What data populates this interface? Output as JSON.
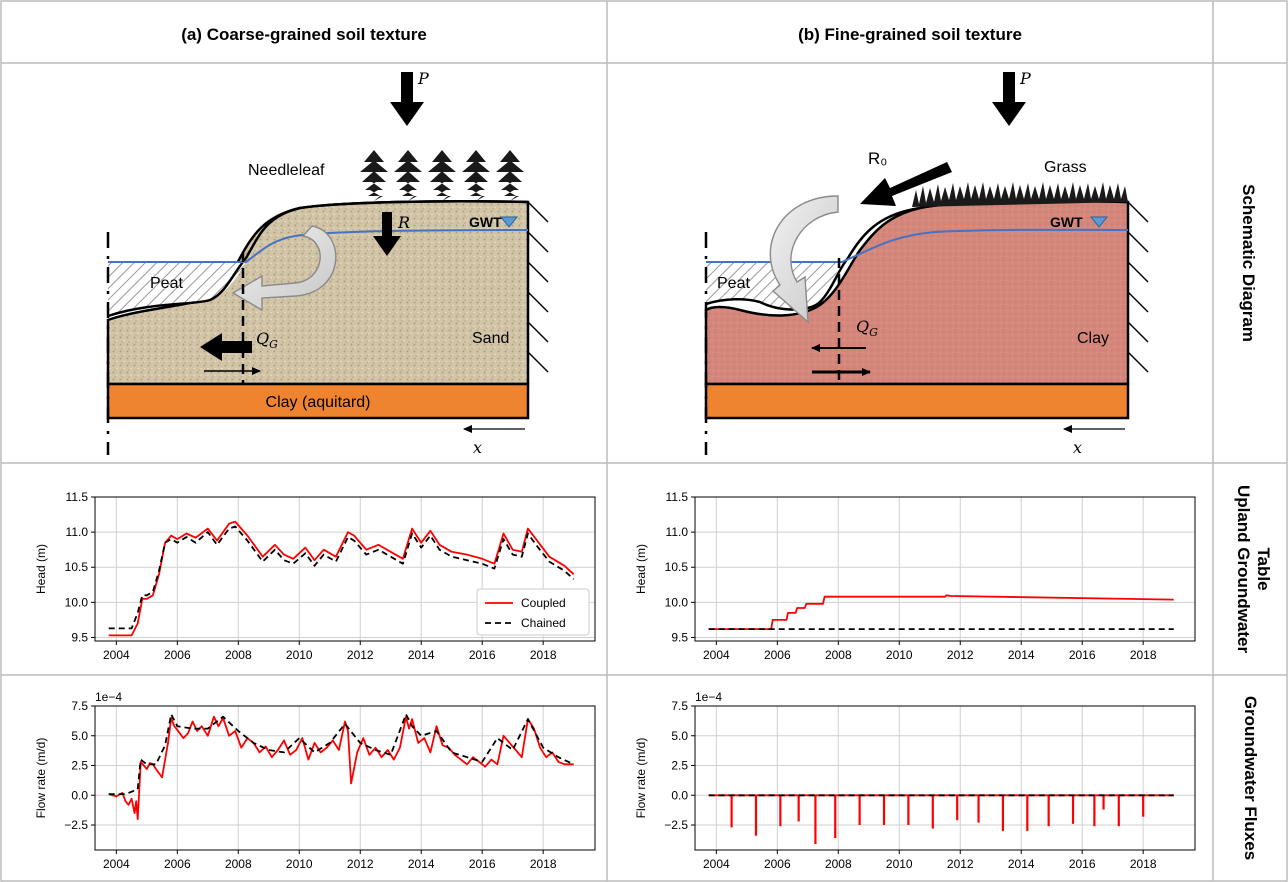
{
  "headers": {
    "col_a": "(a) Coarse-grained soil texture",
    "col_b": "(b) Fine-grained soil texture",
    "row1": "Schematic Diagram",
    "row2_line1": "Upland Groundwater",
    "row2_line2": "Table",
    "row3": "Groundwater Fluxes"
  },
  "diagram_a": {
    "vegetation": "Needleleaf",
    "gwt": "GWT",
    "precip": "P",
    "recharge": "R",
    "peat": "Peat",
    "sand": "Sand",
    "aquitard": "Clay (aquitard)",
    "qg": "Q",
    "qg_sub": "G",
    "x": "x"
  },
  "diagram_b": {
    "vegetation": "Grass",
    "gwt": "GWT",
    "precip": "P",
    "runoff": "R₀",
    "peat": "Peat",
    "clay": "Clay",
    "qg": "Q",
    "qg_sub": "G",
    "x": "x"
  },
  "colors": {
    "sand": "#cfc1a3",
    "clay_soil": "#d4857a",
    "aquitard": "#ef8430",
    "water_table": "#4472c4",
    "coupled": "#ff0000",
    "chained": "#000000"
  },
  "chart_data": [
    {
      "type": "line",
      "ylabel": "Head (m)",
      "ylim": [
        9.45,
        11.5
      ],
      "yticks": [
        "9.5",
        "10.0",
        "10.5",
        "11.0",
        "11.5"
      ],
      "xlim": [
        2003.3,
        2019.7
      ],
      "xticks": [
        "2004",
        "2006",
        "2008",
        "2010",
        "2012",
        "2014",
        "2016",
        "2018"
      ],
      "legend": "lower right",
      "grid": true,
      "series": [
        {
          "name": "Coupled",
          "x": [
            2003.75,
            2004.5,
            2004.7,
            2004.85,
            2005.0,
            2005.2,
            2005.4,
            2005.6,
            2005.8,
            2006.0,
            2006.3,
            2006.6,
            2007.0,
            2007.3,
            2007.7,
            2007.9,
            2008.3,
            2008.8,
            2009.2,
            2009.5,
            2009.8,
            2010.2,
            2010.5,
            2010.8,
            2011.2,
            2011.6,
            2011.8,
            2012.2,
            2012.6,
            2013.0,
            2013.4,
            2013.7,
            2014.0,
            2014.3,
            2014.6,
            2015.0,
            2015.5,
            2016.0,
            2016.4,
            2016.7,
            2017.0,
            2017.3,
            2017.5,
            2017.8,
            2018.2,
            2018.7,
            2019.0
          ],
          "values": [
            9.53,
            9.53,
            9.7,
            10.05,
            10.05,
            10.1,
            10.4,
            10.85,
            10.95,
            10.9,
            10.98,
            10.92,
            11.05,
            10.88,
            11.12,
            11.15,
            10.95,
            10.65,
            10.82,
            10.68,
            10.62,
            10.78,
            10.6,
            10.75,
            10.65,
            11.0,
            10.95,
            10.75,
            10.82,
            10.72,
            10.62,
            11.05,
            10.85,
            11.02,
            10.82,
            10.72,
            10.68,
            10.62,
            10.55,
            10.98,
            10.75,
            10.72,
            11.05,
            10.88,
            10.65,
            10.52,
            10.4
          ]
        },
        {
          "name": "Chained",
          "x": [
            2003.75,
            2004.5,
            2004.7,
            2004.85,
            2005.0,
            2005.2,
            2005.4,
            2005.6,
            2005.8,
            2006.0,
            2006.3,
            2006.6,
            2007.0,
            2007.3,
            2007.7,
            2007.9,
            2008.3,
            2008.8,
            2009.2,
            2009.5,
            2009.8,
            2010.2,
            2010.5,
            2010.8,
            2011.2,
            2011.6,
            2011.8,
            2012.2,
            2012.6,
            2013.0,
            2013.4,
            2013.7,
            2014.0,
            2014.3,
            2014.6,
            2015.0,
            2015.5,
            2016.0,
            2016.4,
            2016.7,
            2017.0,
            2017.3,
            2017.5,
            2017.8,
            2018.2,
            2018.7,
            2019.0
          ],
          "values": [
            9.63,
            9.63,
            9.85,
            10.1,
            10.1,
            10.15,
            10.45,
            10.85,
            10.9,
            10.85,
            10.93,
            10.85,
            11.0,
            10.82,
            11.05,
            11.08,
            10.88,
            10.58,
            10.75,
            10.6,
            10.55,
            10.7,
            10.52,
            10.68,
            10.58,
            10.93,
            10.88,
            10.68,
            10.75,
            10.65,
            10.55,
            10.98,
            10.78,
            10.95,
            10.75,
            10.65,
            10.6,
            10.55,
            10.48,
            10.9,
            10.68,
            10.65,
            10.98,
            10.8,
            10.58,
            10.45,
            10.33
          ]
        }
      ]
    },
    {
      "type": "line",
      "ylabel": "Head (m)",
      "ylim": [
        9.45,
        11.5
      ],
      "yticks": [
        "9.5",
        "10.0",
        "10.5",
        "11.0",
        "11.5"
      ],
      "xlim": [
        2003.3,
        2019.7
      ],
      "xticks": [
        "2004",
        "2006",
        "2008",
        "2010",
        "2012",
        "2014",
        "2016",
        "2018"
      ],
      "grid": true,
      "series": [
        {
          "name": "Coupled",
          "x": [
            2003.75,
            2005.8,
            2005.85,
            2006.3,
            2006.35,
            2006.6,
            2006.65,
            2006.9,
            2006.95,
            2007.5,
            2007.55,
            2011.5,
            2011.55,
            2011.7,
            2019.0
          ],
          "values": [
            9.62,
            9.62,
            9.75,
            9.75,
            9.85,
            9.85,
            9.92,
            9.92,
            9.98,
            9.98,
            10.08,
            10.08,
            10.1,
            10.09,
            10.04
          ]
        },
        {
          "name": "Chained",
          "x": [
            2003.75,
            2019.0
          ],
          "values": [
            9.62,
            9.62
          ]
        }
      ]
    },
    {
      "type": "line",
      "ylabel": "Flow rate (m/d)",
      "scale_label": "1e−4",
      "ylim": [
        -4.6,
        7.5
      ],
      "yticks": [
        "−2.5",
        "0.0",
        "2.5",
        "5.0",
        "7.5"
      ],
      "xlim": [
        2003.3,
        2019.7
      ],
      "xticks": [
        "2004",
        "2006",
        "2008",
        "2010",
        "2012",
        "2014",
        "2016",
        "2018"
      ],
      "grid": true,
      "series": [
        {
          "name": "Coupled",
          "x": [
            2003.75,
            2004.0,
            2004.2,
            2004.3,
            2004.4,
            2004.5,
            2004.6,
            2004.65,
            2004.7,
            2004.75,
            2004.8,
            2004.9,
            2005.0,
            2005.1,
            2005.2,
            2005.3,
            2005.5,
            2005.6,
            2005.7,
            2005.8,
            2005.9,
            2006.0,
            2006.2,
            2006.35,
            2006.5,
            2006.65,
            2006.8,
            2007.0,
            2007.2,
            2007.35,
            2007.5,
            2007.7,
            2007.9,
            2008.1,
            2008.3,
            2008.5,
            2008.7,
            2008.9,
            2009.1,
            2009.3,
            2009.5,
            2009.7,
            2009.9,
            2010.1,
            2010.3,
            2010.5,
            2010.7,
            2010.9,
            2011.1,
            2011.3,
            2011.5,
            2011.6,
            2011.7,
            2011.9,
            2012.1,
            2012.3,
            2012.5,
            2012.7,
            2012.9,
            2013.1,
            2013.3,
            2013.5,
            2013.6,
            2013.7,
            2013.9,
            2014.1,
            2014.3,
            2014.5,
            2014.7,
            2014.9,
            2015.1,
            2015.3,
            2015.5,
            2015.7,
            2015.9,
            2016.1,
            2016.3,
            2016.5,
            2016.7,
            2016.9,
            2017.1,
            2017.3,
            2017.5,
            2017.7,
            2017.9,
            2018.1,
            2018.3,
            2018.5,
            2018.7,
            2019.0
          ],
          "values": [
            0.1,
            -0.1,
            0.2,
            -0.5,
            -0.8,
            -0.3,
            -1.5,
            -0.5,
            -2.0,
            0.3,
            2.8,
            2.5,
            2.2,
            2.7,
            2.6,
            2.2,
            1.5,
            3.0,
            4.5,
            6.5,
            5.8,
            5.5,
            4.8,
            5.2,
            6.2,
            5.4,
            5.8,
            5.0,
            6.6,
            5.8,
            6.5,
            5.0,
            5.4,
            4.0,
            4.8,
            4.4,
            3.6,
            4.1,
            3.2,
            3.8,
            4.6,
            3.4,
            3.8,
            4.8,
            3.0,
            4.4,
            3.6,
            4.0,
            4.6,
            3.8,
            6.2,
            5.4,
            1.0,
            3.6,
            4.8,
            3.4,
            4.0,
            3.2,
            3.8,
            3.0,
            4.0,
            6.6,
            5.6,
            6.4,
            4.4,
            4.8,
            3.6,
            5.8,
            4.2,
            4.0,
            3.4,
            3.0,
            2.6,
            3.2,
            2.8,
            2.4,
            3.0,
            2.6,
            5.0,
            4.4,
            3.8,
            3.2,
            6.4,
            5.6,
            4.0,
            3.2,
            3.6,
            2.8,
            2.6,
            2.6
          ]
        },
        {
          "name": "Chained",
          "x": [
            2003.75,
            2004.3,
            2004.7,
            2004.8,
            2005.0,
            2005.3,
            2005.6,
            2005.8,
            2006.0,
            2006.5,
            2007.0,
            2007.5,
            2008.0,
            2008.5,
            2009.0,
            2009.5,
            2010.0,
            2010.5,
            2011.0,
            2011.5,
            2012.0,
            2012.5,
            2013.0,
            2013.5,
            2013.7,
            2014.0,
            2014.5,
            2015.0,
            2015.5,
            2016.0,
            2016.5,
            2017.0,
            2017.5,
            2018.0,
            2018.5,
            2019.0
          ],
          "values": [
            0.1,
            0.1,
            0.5,
            3.0,
            2.6,
            2.6,
            4.2,
            6.8,
            5.8,
            5.6,
            5.6,
            6.6,
            5.4,
            4.4,
            3.8,
            3.6,
            4.8,
            3.6,
            4.4,
            6.0,
            4.4,
            3.8,
            3.4,
            6.8,
            5.8,
            5.0,
            5.4,
            3.6,
            3.2,
            2.8,
            4.8,
            3.8,
            6.4,
            4.0,
            3.2,
            2.6
          ]
        }
      ]
    },
    {
      "type": "line",
      "ylabel": "Flow rate (m/d)",
      "scale_label": "1e−4",
      "ylim": [
        -4.6,
        7.5
      ],
      "yticks": [
        "−2.5",
        "0.0",
        "2.5",
        "5.0",
        "7.5"
      ],
      "xlim": [
        2003.3,
        2019.7
      ],
      "xticks": [
        "2004",
        "2006",
        "2008",
        "2010",
        "2012",
        "2014",
        "2016",
        "2018"
      ],
      "grid": true,
      "spikes": [
        [
          2004.5,
          -2.7
        ],
        [
          2005.3,
          -3.4
        ],
        [
          2006.1,
          -2.6
        ],
        [
          2006.7,
          -2.2
        ],
        [
          2007.25,
          -4.1
        ],
        [
          2007.9,
          -3.6
        ],
        [
          2008.7,
          -2.5
        ],
        [
          2009.5,
          -2.5
        ],
        [
          2010.3,
          -2.5
        ],
        [
          2011.1,
          -2.8
        ],
        [
          2011.9,
          -2.1
        ],
        [
          2012.6,
          -2.3
        ],
        [
          2013.4,
          -3.0
        ],
        [
          2014.2,
          -3.0
        ],
        [
          2014.9,
          -2.6
        ],
        [
          2015.7,
          -2.4
        ],
        [
          2016.4,
          -2.6
        ],
        [
          2016.7,
          -1.2
        ],
        [
          2017.2,
          -2.6
        ],
        [
          2018.0,
          -1.8
        ]
      ],
      "series": [
        {
          "name": "Coupled",
          "x": [
            2003.75,
            2019.0
          ],
          "values": [
            0.0,
            0.0
          ]
        },
        {
          "name": "Chained",
          "x": [
            2003.75,
            2019.0
          ],
          "values": [
            0.0,
            0.0
          ]
        }
      ]
    }
  ]
}
